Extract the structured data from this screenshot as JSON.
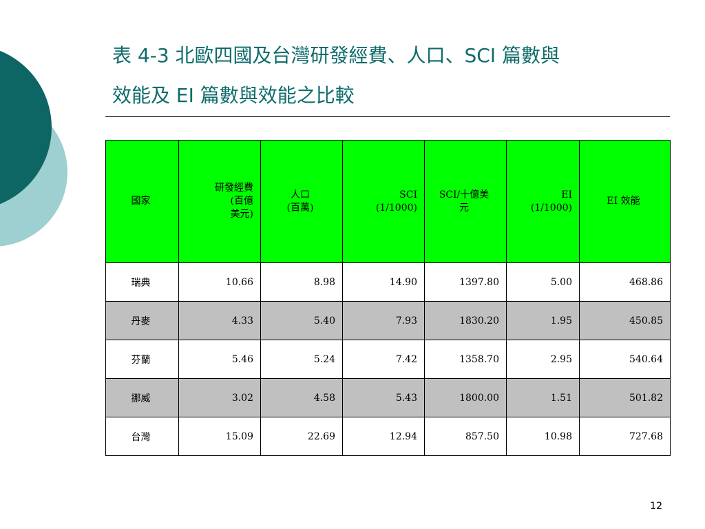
{
  "slide": {
    "title_line1": "表 4-3 北歐四國及台灣研發經費、人口、SCI 篇數與",
    "title_line2": "效能及 EI 篇數與效能之比較",
    "page_number": "12",
    "colors": {
      "title": "#0e6b6b",
      "header_fill": "#00ff00",
      "shaded_row": "#c0c0c0",
      "circle_dark": "#0d6564",
      "circle_light": "#9ecfd1"
    }
  },
  "table": {
    "headers": [
      {
        "line1": "國家",
        "line2": "",
        "line3": ""
      },
      {
        "line1": "研發經費",
        "line2": "(百億",
        "line3": "美元)"
      },
      {
        "line1": "人口",
        "line2": "(百萬)",
        "line3": ""
      },
      {
        "line1": "SCI",
        "line2": "(1/1000)",
        "line3": ""
      },
      {
        "line1": "SCI/十億美",
        "line2": "元",
        "line3": ""
      },
      {
        "line1": "EI",
        "line2": "(1/1000)",
        "line3": ""
      },
      {
        "line1": "EI 效能",
        "line2": "",
        "line3": ""
      }
    ],
    "rows": [
      {
        "country": "瑞典",
        "rd": "10.66",
        "pop": "8.98",
        "sci": "14.90",
        "sci_eff": "1397.80",
        "ei": "5.00",
        "ei_eff": "468.86"
      },
      {
        "country": "丹麥",
        "rd": "4.33",
        "pop": "5.40",
        "sci": "7.93",
        "sci_eff": "1830.20",
        "ei": "1.95",
        "ei_eff": "450.85"
      },
      {
        "country": "芬蘭",
        "rd": "5.46",
        "pop": "5.24",
        "sci": "7.42",
        "sci_eff": "1358.70",
        "ei": "2.95",
        "ei_eff": "540.64"
      },
      {
        "country": "挪威",
        "rd": "3.02",
        "pop": "4.58",
        "sci": "5.43",
        "sci_eff": "1800.00",
        "ei": "1.51",
        "ei_eff": "501.82"
      },
      {
        "country": "台灣",
        "rd": "15.09",
        "pop": "22.69",
        "sci": "12.94",
        "sci_eff": "857.50",
        "ei": "10.98",
        "ei_eff": "727.68"
      }
    ]
  }
}
